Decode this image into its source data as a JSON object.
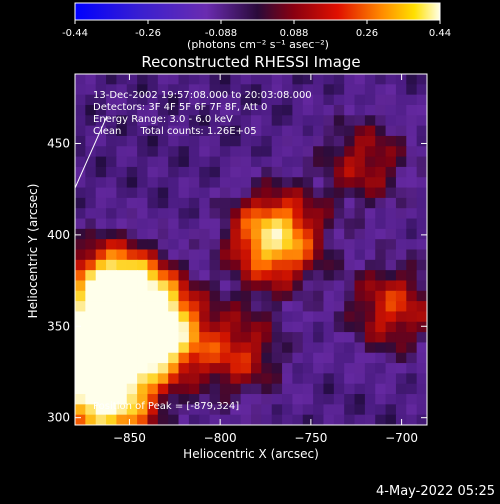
{
  "colorbar": {
    "ticks": [
      "-0.44",
      "-0.26",
      "-0.088",
      "0.088",
      "0.26",
      "0.44"
    ],
    "min": -0.44,
    "max": 0.44,
    "unit_label": "(photons cm⁻² s⁻¹ asec⁻²)"
  },
  "chart_data": {
    "type": "heatmap",
    "title": "Reconstructed RHESSI Image",
    "xlabel": "Heliocentric X (arcsec)",
    "ylabel": "Heliocentric Y (arcsec)",
    "xlim": [
      -880,
      -686
    ],
    "ylim": [
      296,
      488
    ],
    "x_ticks": [
      -850,
      -800,
      -750,
      -700
    ],
    "y_ticks": [
      300,
      350,
      400,
      450
    ],
    "x_tick_labels": [
      "−850",
      "−800",
      "−750",
      "−700"
    ],
    "y_tick_labels": [
      "300",
      "350",
      "400",
      "450"
    ],
    "colormap": "red-temperature",
    "annotations": [
      "13-Dec-2002 19:57:08.000 to 20:03:08.000",
      "Detectors: 3F 4F 5F 6F 7F 8F, Att 0",
      "Energy Range: 3.0 - 6.0 keV",
      "Clean      Total counts: 1.26E+05"
    ],
    "peak_label": "Position of Peak = [-879,324]",
    "peak": [
      -879,
      324
    ],
    "sources": [
      {
        "x": -872,
        "y": 330,
        "value": 0.44
      },
      {
        "x": -848,
        "y": 357,
        "value": 0.4
      },
      {
        "x": -862,
        "y": 372,
        "value": 0.3
      },
      {
        "x": -835,
        "y": 345,
        "value": 0.32
      },
      {
        "x": -770,
        "y": 398,
        "value": 0.38
      },
      {
        "x": -790,
        "y": 335,
        "value": 0.2
      },
      {
        "x": -705,
        "y": 360,
        "value": 0.22
      },
      {
        "x": -720,
        "y": 440,
        "value": 0.18
      },
      {
        "x": -860,
        "y": 305,
        "value": 0.3
      }
    ]
  },
  "footer": {
    "date": "4-May-2022 05:25"
  }
}
